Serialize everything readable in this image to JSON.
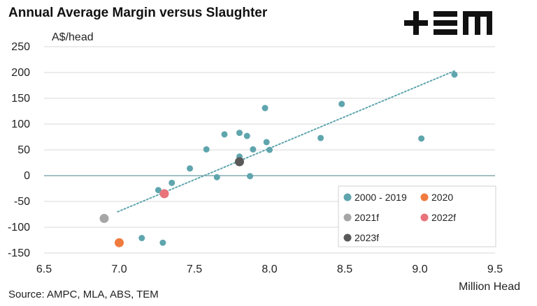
{
  "brand": {
    "logo_text": "+EM"
  },
  "source_note": "Source: AMPC, MLA, ABS, TEM",
  "colors": {
    "series_2000_2019": "#5fa5ad",
    "series_2020": "#f07b3f",
    "series_2021f": "#a6a6a6",
    "series_2022f": "#e8737a",
    "series_2023f": "#595959",
    "trendline": "#5fa5ad",
    "zero_line": "#6a9aa0",
    "grid": "#d9d9d9"
  },
  "chart_data": {
    "type": "scatter",
    "title": "Annual Average Margin versus Slaughter",
    "ylabel": "A$/head",
    "xlabel": "Million Head",
    "xlim": [
      6.5,
      9.5
    ],
    "ylim": [
      -150,
      250
    ],
    "xticks": [
      "6.5",
      "7.0",
      "7.5",
      "8.0",
      "8.5",
      "9.0",
      "9.5"
    ],
    "yticks": [
      "250",
      "200",
      "150",
      "100",
      "50",
      "0",
      "-50",
      "-100",
      "-150"
    ],
    "grid": "horizontal",
    "legend_position": "bottom-right",
    "series": [
      {
        "name": "2000 - 2019",
        "points": [
          [
            7.15,
            -121
          ],
          [
            7.26,
            -28
          ],
          [
            7.29,
            -130
          ],
          [
            7.35,
            -14
          ],
          [
            7.47,
            14
          ],
          [
            7.58,
            51
          ],
          [
            7.65,
            -3
          ],
          [
            7.7,
            80
          ],
          [
            7.8,
            83
          ],
          [
            7.8,
            37
          ],
          [
            7.85,
            77
          ],
          [
            7.87,
            -1
          ],
          [
            7.89,
            51
          ],
          [
            7.97,
            131
          ],
          [
            7.98,
            65
          ],
          [
            8.0,
            50
          ],
          [
            8.34,
            73
          ],
          [
            8.48,
            139
          ],
          [
            9.01,
            72
          ],
          [
            9.23,
            196
          ]
        ]
      },
      {
        "name": "2020",
        "points": [
          [
            7.0,
            -130
          ]
        ]
      },
      {
        "name": "2021f",
        "points": [
          [
            6.9,
            -83
          ]
        ]
      },
      {
        "name": "2022f",
        "points": [
          [
            7.3,
            -35
          ]
        ]
      },
      {
        "name": "2023f",
        "points": [
          [
            7.8,
            27
          ]
        ]
      }
    ],
    "trendline": {
      "from": [
        6.99,
        -70
      ],
      "to": [
        9.23,
        203
      ],
      "style": "dotted"
    }
  }
}
